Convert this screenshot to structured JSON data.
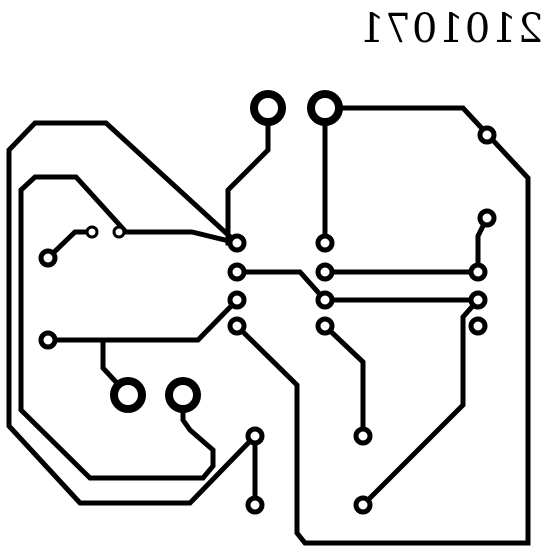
{
  "board": {
    "label": "2101071"
  }
}
